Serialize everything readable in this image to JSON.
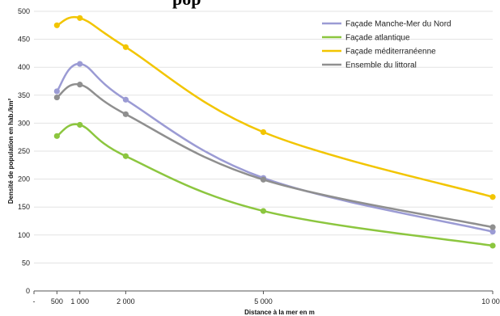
{
  "chart_data": {
    "type": "line",
    "title": "pop",
    "xlabel": "Distance à la mer en m",
    "ylabel": "Densité de population en hab./km²",
    "xlim": [
      0,
      10000
    ],
    "ylim": [
      0,
      500
    ],
    "x_ticks": [
      {
        "value": 0,
        "label": "-"
      },
      {
        "value": 500,
        "label": "500"
      },
      {
        "value": 1000,
        "label": "1 000"
      },
      {
        "value": 2000,
        "label": "2 000"
      },
      {
        "value": 5000,
        "label": "5 000"
      },
      {
        "value": 10000,
        "label": "10 000"
      }
    ],
    "y_ticks": [
      0,
      50,
      100,
      150,
      200,
      250,
      300,
      350,
      400,
      450,
      500
    ],
    "grid": "horizontal",
    "legend_position": "top-right",
    "x": [
      500,
      1000,
      2000,
      5000,
      10000
    ],
    "series": [
      {
        "name": "Façade Manche-Mer du Nord",
        "color": "#9b9bd4",
        "values": [
          357,
          406,
          342,
          202,
          106
        ]
      },
      {
        "name": "Façade atlantique",
        "color": "#8cc63f",
        "values": [
          277,
          297,
          241,
          143,
          81
        ]
      },
      {
        "name": "Façade méditerranéenne",
        "color": "#f2c500",
        "values": [
          475,
          488,
          436,
          284,
          168
        ]
      },
      {
        "name": "Ensemble du littoral",
        "color": "#8f8f8f",
        "values": [
          346,
          369,
          316,
          199,
          114
        ]
      }
    ]
  }
}
